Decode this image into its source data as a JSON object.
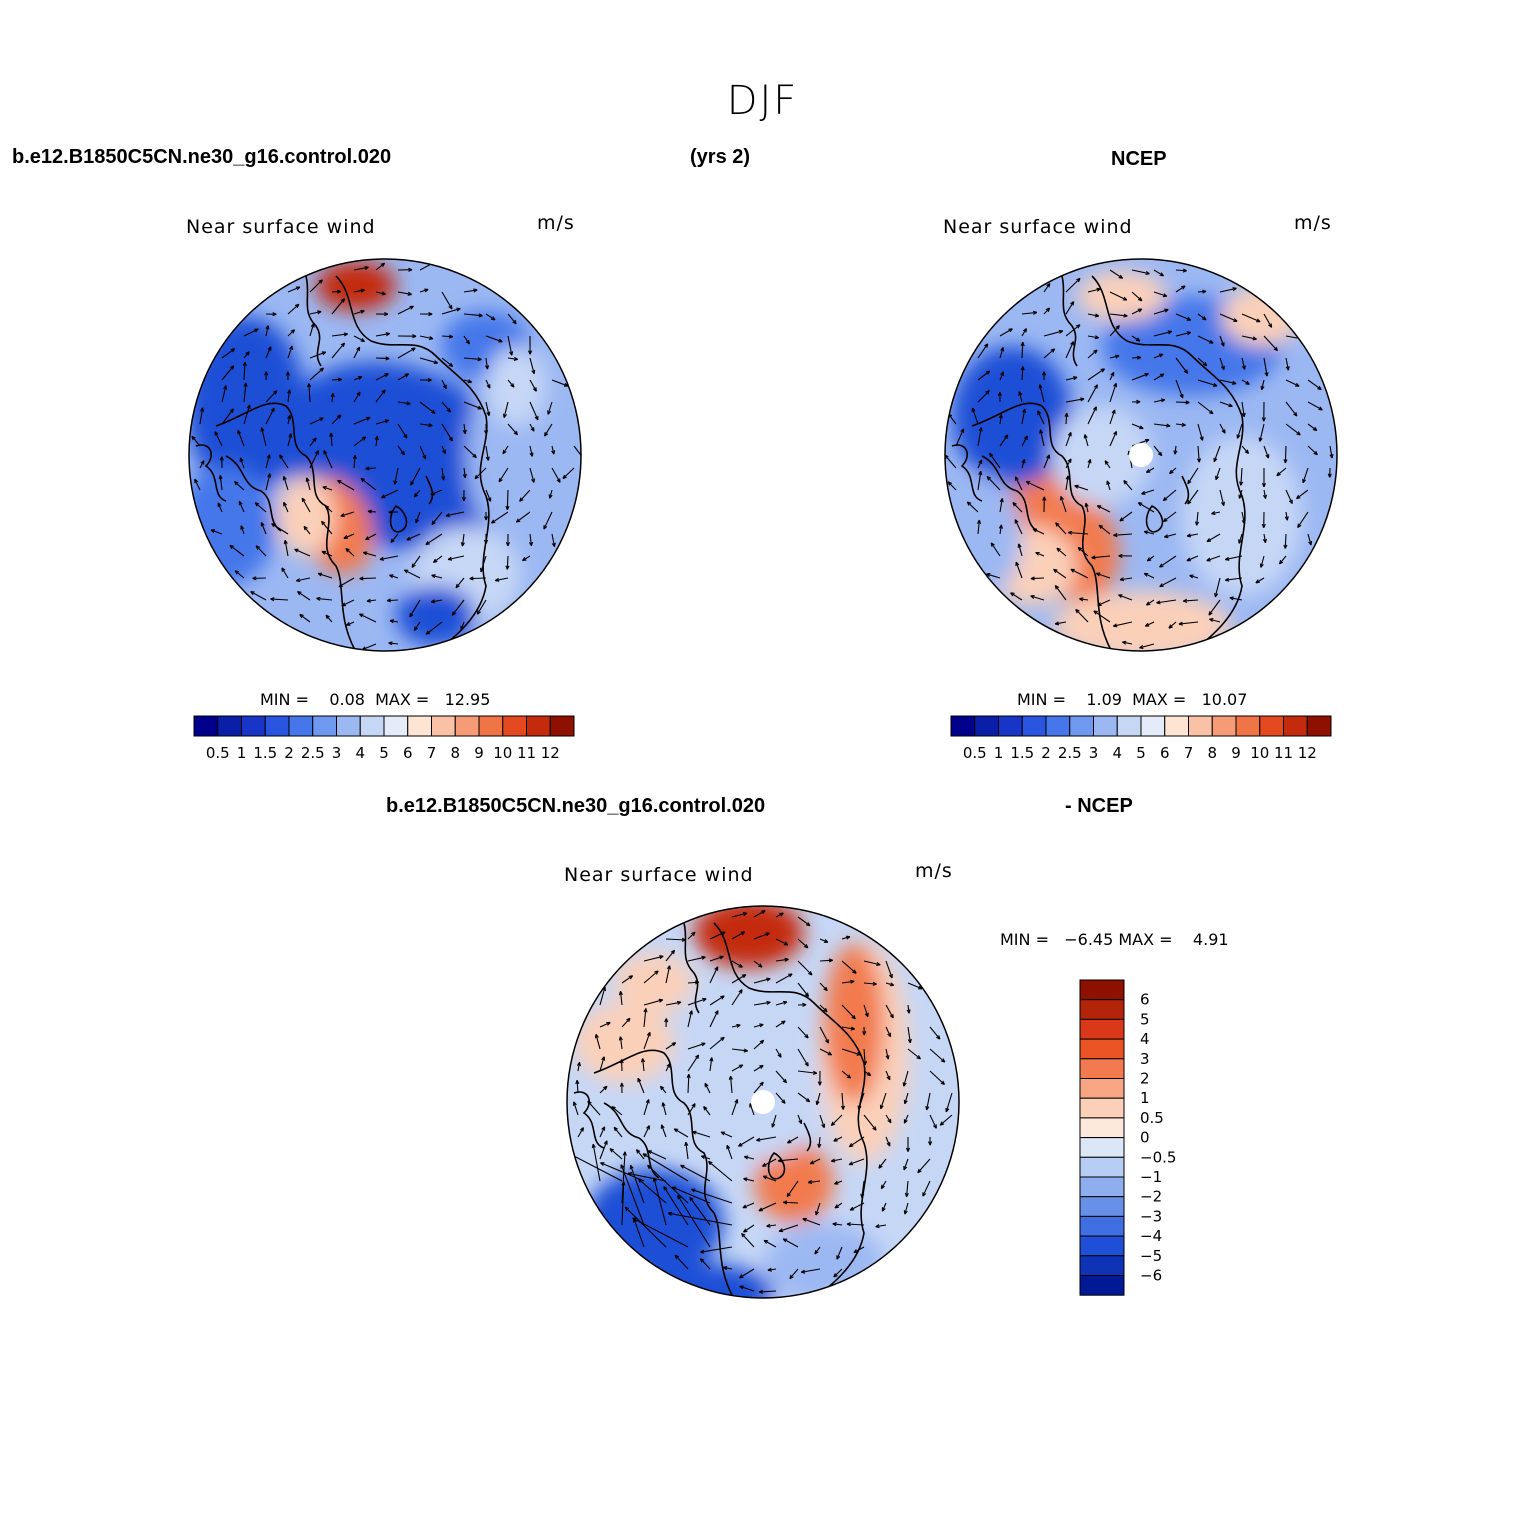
{
  "title": "DJF",
  "header": {
    "case_name": "b.e12.B1850C5CN.ne30_g16.control.020",
    "years": "(yrs 2)",
    "obs_name": "NCEP",
    "diff_case": "b.e12.B1850C5CN.ne30_g16.control.020",
    "diff_obs": "- NCEP"
  },
  "panels": {
    "model": {
      "title": "Near surface wind",
      "units": "m/s",
      "min_label": "MIN =",
      "min_value": "0.08",
      "max_label": "MAX =",
      "max_value": "12.95"
    },
    "obs": {
      "title": "Near surface wind",
      "units": "m/s",
      "min_label": "MIN =",
      "min_value": "1.09",
      "max_label": "MAX =",
      "max_value": "10.07"
    },
    "diff": {
      "title": "Near surface wind",
      "units": "m/s",
      "min_label": "MIN =",
      "min_value": "−6.45",
      "max_label": "MAX =",
      "max_value": "4.91"
    }
  },
  "colorbar_main": {
    "labels": [
      "0.5",
      "1",
      "1.5",
      "2",
      "2.5",
      "3",
      "4",
      "5",
      "6",
      "7",
      "8",
      "9",
      "10",
      "11",
      "12"
    ],
    "colors": [
      "#00008c",
      "#0a1fa8",
      "#1736c7",
      "#2a55e0",
      "#4577ea",
      "#6f98ef",
      "#9cb8f3",
      "#c6d7f6",
      "#e3ecf8",
      "#fde4d3",
      "#f9c2a6",
      "#f59c77",
      "#ef7547",
      "#e4491f",
      "#c42b0d",
      "#8e1100"
    ]
  },
  "colorbar_diff": {
    "labels": [
      "6",
      "5",
      "4",
      "3",
      "2",
      "1",
      "0.5",
      "0",
      "−0.5",
      "−1",
      "−2",
      "−3",
      "−4",
      "−5",
      "−6"
    ],
    "colors": [
      "#8e1100",
      "#b3240b",
      "#d9391a",
      "#ea5424",
      "#f27a4e",
      "#f7a583",
      "#fbd0b9",
      "#fde8dc",
      "#dbe6f7",
      "#b7cdf3",
      "#8eaeef",
      "#6890e8",
      "#3f6fe2",
      "#1f4fd6",
      "#0e33b7",
      "#001a96"
    ]
  },
  "map_field_colors": {
    "strong_blue": "#1f4fd6",
    "mid_blue": "#4577ea",
    "light_blue": "#9cb8f3",
    "pale_blue": "#c6d7f6",
    "pale_orange": "#fbd0b9",
    "orange": "#f27a4e",
    "red": "#c42b0d"
  }
}
